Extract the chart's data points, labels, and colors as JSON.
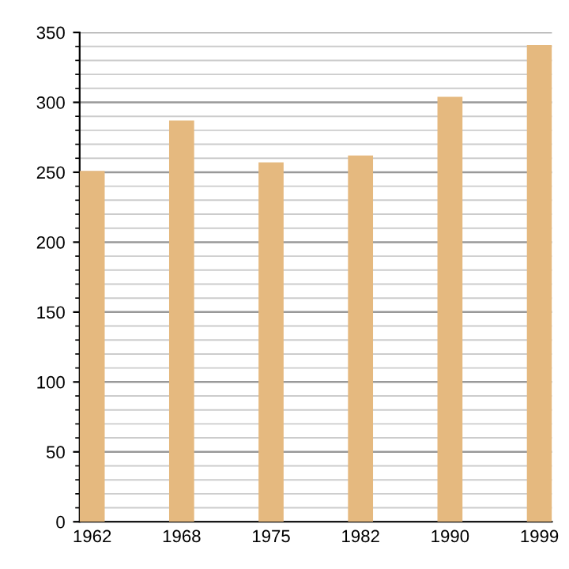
{
  "chart_data": {
    "type": "bar",
    "categories": [
      "1962",
      "1968",
      "1975",
      "1982",
      "1990",
      "1999"
    ],
    "values": [
      251,
      287,
      257,
      262,
      304,
      341
    ],
    "color": "#e5b97f",
    "ylim": [
      0,
      350
    ],
    "yticks": [
      0,
      50,
      100,
      150,
      200,
      250,
      300,
      350
    ],
    "grid": "y"
  }
}
